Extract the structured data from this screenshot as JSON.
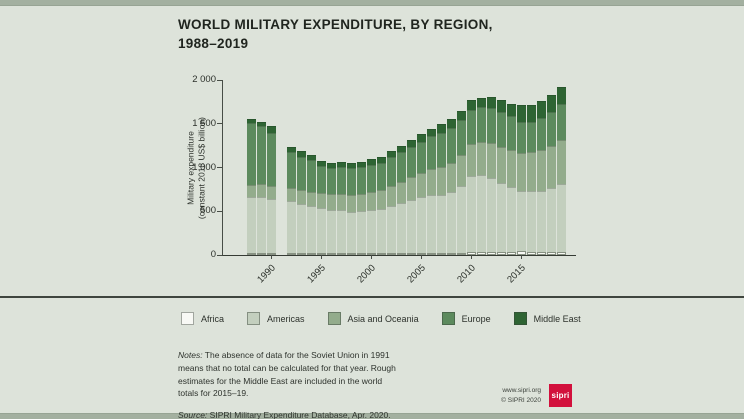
{
  "page": {
    "background": "#dde3da",
    "edge_strip_color": "#a3b0a0",
    "divider_color": "#3f453e"
  },
  "title": {
    "line1": "WORLD MILITARY EXPENDITURE, BY REGION,",
    "line2": "1988–2019"
  },
  "chart_data": {
    "type": "bar",
    "stacked": true,
    "title": "WORLD MILITARY EXPENDITURE, BY REGION, 1988–2019",
    "ylabel_line1": "Military expenditure",
    "ylabel_line2": "(constant 2018 US$ billion)",
    "ylim": [
      0,
      2000
    ],
    "ytick_values": [
      0,
      500,
      1000,
      1500,
      2000
    ],
    "ytick_labels": [
      "0",
      "500",
      "1 000",
      "1 500",
      "2 000"
    ],
    "xtick_labels": [
      "1990",
      "1995",
      "2000",
      "2005",
      "2010",
      "2015"
    ],
    "grid": false,
    "legend_position": "below",
    "years": [
      1988,
      1989,
      1990,
      1991,
      1992,
      1993,
      1994,
      1995,
      1996,
      1997,
      1998,
      1999,
      2000,
      2001,
      2002,
      2003,
      2004,
      2005,
      2006,
      2007,
      2008,
      2009,
      2010,
      2011,
      2012,
      2013,
      2014,
      2015,
      2016,
      2017,
      2018,
      2019
    ],
    "missing_years": [
      1991
    ],
    "series": [
      {
        "name": "Africa",
        "color": "#f8f9f5",
        "values": [
          13,
          13,
          14,
          null,
          14,
          14,
          14,
          15,
          15,
          15,
          15,
          16,
          17,
          17,
          18,
          19,
          20,
          21,
          22,
          23,
          25,
          28,
          33,
          34,
          35,
          38,
          40,
          42,
          40,
          40,
          38,
          38
        ]
      },
      {
        "name": "Americas",
        "color": "#c3cfbe",
        "values": [
          640,
          645,
          620,
          null,
          590,
          565,
          535,
          510,
          490,
          490,
          470,
          475,
          490,
          500,
          540,
          570,
          610,
          640,
          660,
          660,
          700,
          760,
          865,
          880,
          850,
          790,
          740,
          690,
          690,
          695,
          730,
          770
        ]
      },
      {
        "name": "Asia and Oceania",
        "color": "#93ac8c",
        "values": [
          135,
          140,
          145,
          null,
          150,
          155,
          160,
          180,
          185,
          190,
          195,
          200,
          210,
          220,
          230,
          245,
          260,
          280,
          300,
          320,
          330,
          350,
          368,
          380,
          390,
          405,
          420,
          435,
          450,
          465,
          480,
          512
        ]
      },
      {
        "name": "Europe",
        "color": "#5c8a5d",
        "values": [
          707,
          662,
          601,
          null,
          416,
          383,
          366,
          310,
          300,
          302,
          302,
          304,
          308,
          313,
          325,
          336,
          342,
          354,
          373,
          397,
          400,
          407,
          394,
          396,
          405,
          407,
          390,
          348,
          345,
          365,
          387,
          410
        ]
      },
      {
        "name": "Middle East",
        "color": "#2e6433",
        "values": [
          55,
          55,
          80,
          null,
          60,
          58,
          55,
          55,
          55,
          58,
          58,
          60,
          65,
          70,
          72,
          75,
          78,
          85,
          90,
          95,
          100,
          105,
          110,
          110,
          125,
          135,
          140,
          195,
          195,
          195,
          195,
          190
        ]
      }
    ]
  },
  "legend": {
    "items": [
      {
        "label": "Africa",
        "color": "#f8f9f5"
      },
      {
        "label": "Americas",
        "color": "#c3cfbe"
      },
      {
        "label": "Asia and Oceania",
        "color": "#93ac8c"
      },
      {
        "label": "Europe",
        "color": "#5c8a5d"
      },
      {
        "label": "Middle East",
        "color": "#2e6433"
      }
    ]
  },
  "notes": {
    "label": "Notes:",
    "text": " The absence of data for the Soviet Union in 1991 means that no total can be calculated for that year. Rough estimates for the Middle East are included in the world totals for 2015–19."
  },
  "source": {
    "label": "Source:",
    "text": " SIPRI Military Expenditure Database, Apr. 2020."
  },
  "footer": {
    "website": "www.sipri.org",
    "copyright": "© SIPRI 2020",
    "logo_text": "sipri",
    "logo_color": "#d2103c"
  }
}
